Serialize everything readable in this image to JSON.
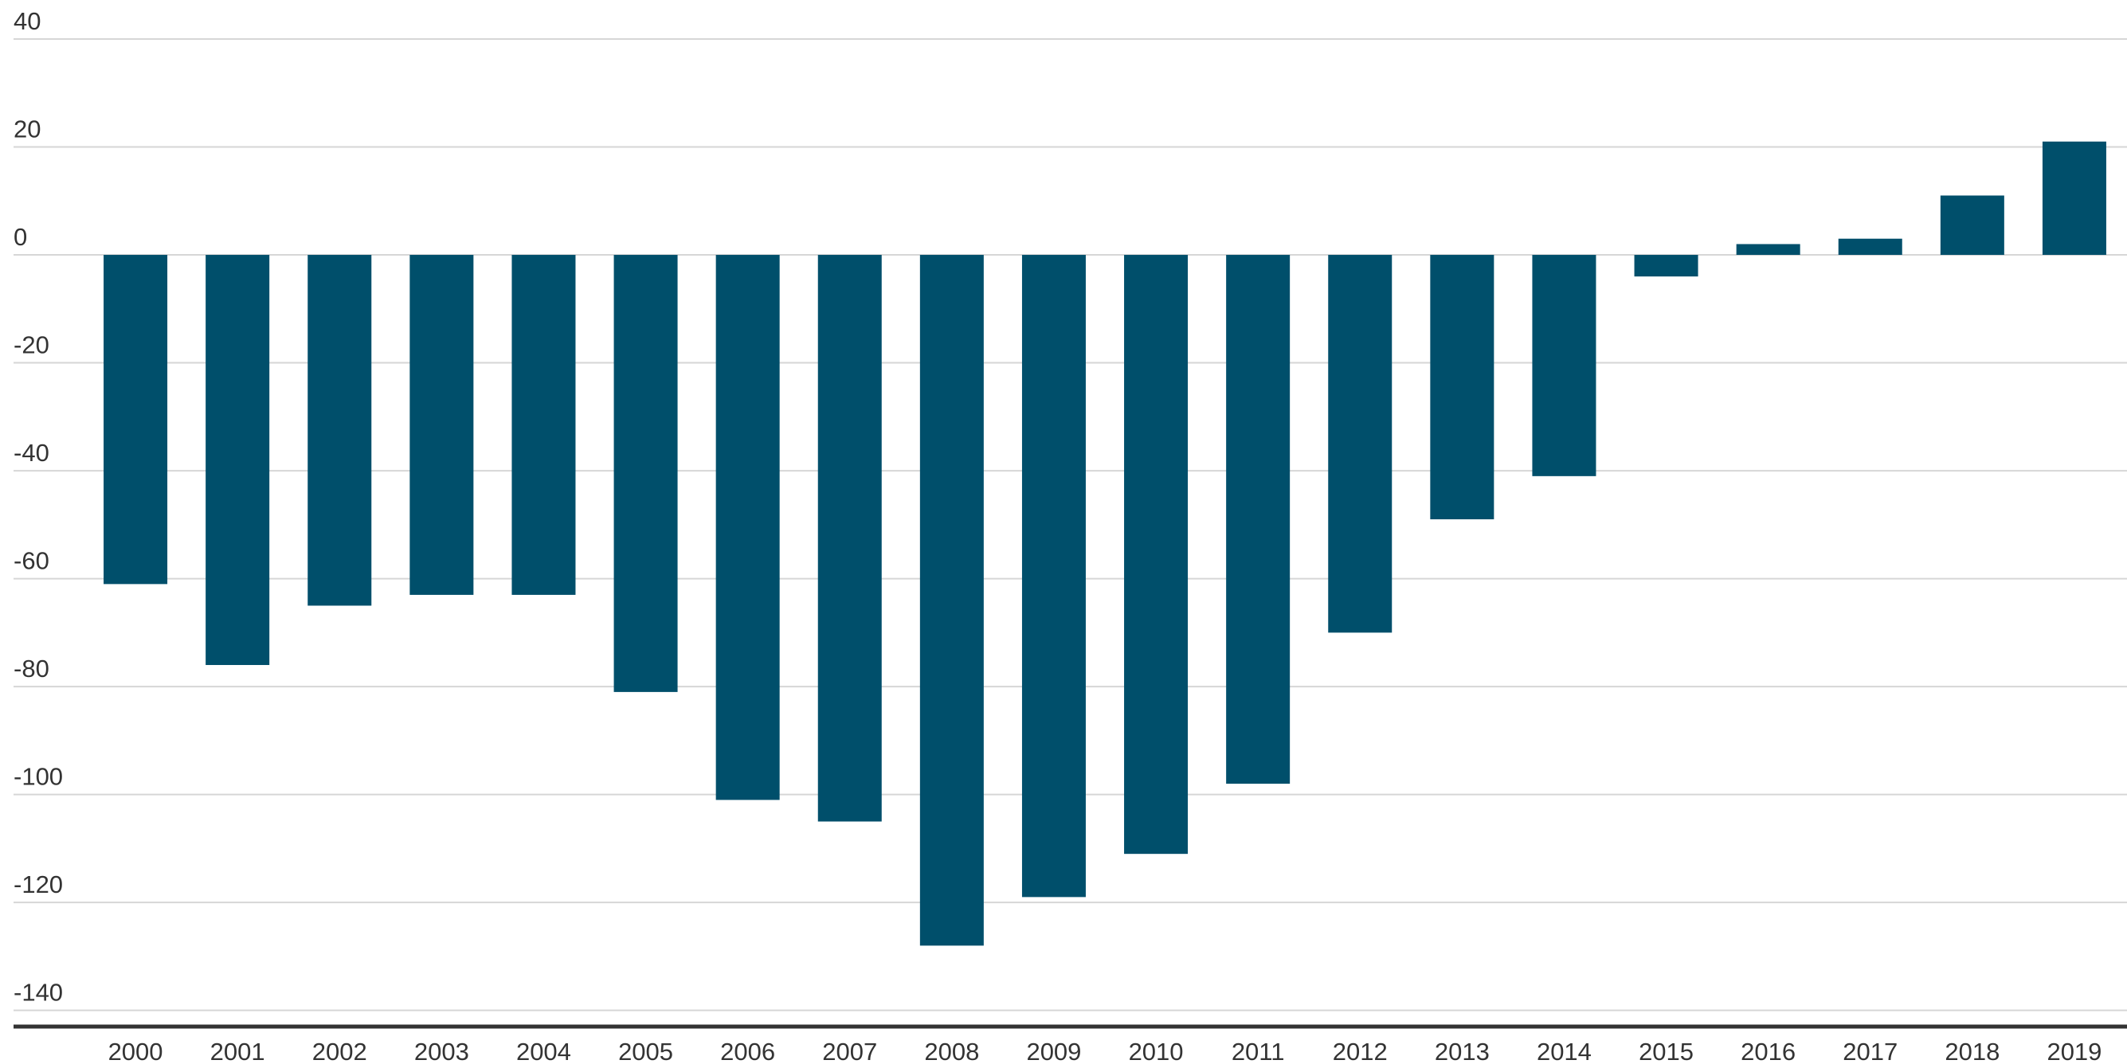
{
  "chart_data": {
    "type": "bar",
    "categories": [
      "2000",
      "2001",
      "2002",
      "2003",
      "2004",
      "2005",
      "2006",
      "2007",
      "2008",
      "2009",
      "2010",
      "2011",
      "2012",
      "2013",
      "2014",
      "2015",
      "2016",
      "2017",
      "2018",
      "2019"
    ],
    "values": [
      -61,
      -76,
      -65,
      -63,
      -63,
      -81,
      -101,
      -105,
      -128,
      -119,
      -111,
      -98,
      -70,
      -49,
      -41,
      -4,
      2,
      3,
      11,
      21
    ],
    "color": "#004f6b",
    "ylim": [
      -143,
      40
    ],
    "yticks": [
      40,
      20,
      0,
      -20,
      -40,
      -60,
      -80,
      -100,
      -120,
      -140
    ],
    "grid": true
  }
}
